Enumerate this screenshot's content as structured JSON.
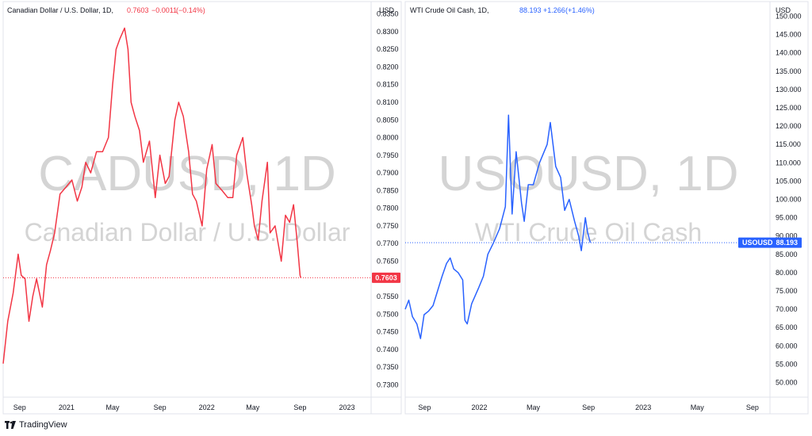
{
  "footer": {
    "brand": "TradingView",
    "logo_icon": "tradingview-logo-icon"
  },
  "chart_data": [
    {
      "type": "line",
      "title": "Canadian Dollar / U.S. Dollar, 1D,",
      "last_value": "0.7603",
      "change": "−0.0011",
      "change_pct": "(−0.14%)",
      "watermark_symbol": "CADUSD, 1D",
      "watermark_name": "Canadian Dollar / U.S. Dollar",
      "currency": "USD",
      "price_label": "0.7603",
      "color": "#f23645",
      "ylim": [
        0.7265,
        0.8385
      ],
      "yticks": [
        "0.8350",
        "0.8300",
        "0.8250",
        "0.8200",
        "0.8150",
        "0.8100",
        "0.8050",
        "0.8000",
        "0.7950",
        "0.7900",
        "0.7850",
        "0.7800",
        "0.7750",
        "0.7700",
        "0.7650",
        "0.7600",
        "0.7550",
        "0.7500",
        "0.7450",
        "0.7400",
        "0.7350",
        "0.7300"
      ],
      "xlim": [
        "2020-07-20",
        "2023-03-05"
      ],
      "xticks": [
        {
          "date": "2020-09-01",
          "label": "Sep"
        },
        {
          "date": "2021-01-01",
          "label": "2021"
        },
        {
          "date": "2021-05-01",
          "label": "May"
        },
        {
          "date": "2021-09-01",
          "label": "Sep"
        },
        {
          "date": "2022-01-01",
          "label": "2022"
        },
        {
          "date": "2022-05-01",
          "label": "May"
        },
        {
          "date": "2022-09-01",
          "label": "Sep"
        },
        {
          "date": "2023-01-01",
          "label": "2023"
        }
      ],
      "series": [
        {
          "values": [
            [
              "2020-07-20",
              0.736
            ],
            [
              "2020-08-01",
              0.748
            ],
            [
              "2020-08-15",
              0.756
            ],
            [
              "2020-08-28",
              0.767
            ],
            [
              "2020-09-05",
              0.761
            ],
            [
              "2020-09-15",
              0.76
            ],
            [
              "2020-09-25",
              0.748
            ],
            [
              "2020-10-05",
              0.755
            ],
            [
              "2020-10-15",
              0.76
            ],
            [
              "2020-10-30",
              0.752
            ],
            [
              "2020-11-10",
              0.764
            ],
            [
              "2020-11-20",
              0.768
            ],
            [
              "2020-12-01",
              0.773
            ],
            [
              "2020-12-15",
              0.784
            ],
            [
              "2020-12-31",
              0.786
            ],
            [
              "2021-01-15",
              0.788
            ],
            [
              "2021-01-29",
              0.782
            ],
            [
              "2021-02-10",
              0.786
            ],
            [
              "2021-02-20",
              0.793
            ],
            [
              "2021-03-05",
              0.79
            ],
            [
              "2021-03-20",
              0.796
            ],
            [
              "2021-04-05",
              0.796
            ],
            [
              "2021-04-20",
              0.8
            ],
            [
              "2021-05-01",
              0.815
            ],
            [
              "2021-05-10",
              0.825
            ],
            [
              "2021-05-20",
              0.828
            ],
            [
              "2021-06-01",
              0.831
            ],
            [
              "2021-06-10",
              0.825
            ],
            [
              "2021-06-18",
              0.81
            ],
            [
              "2021-06-28",
              0.806
            ],
            [
              "2021-07-10",
              0.802
            ],
            [
              "2021-07-20",
              0.793
            ],
            [
              "2021-08-05",
              0.799
            ],
            [
              "2021-08-20",
              0.783
            ],
            [
              "2021-09-01",
              0.795
            ],
            [
              "2021-09-15",
              0.787
            ],
            [
              "2021-09-25",
              0.789
            ],
            [
              "2021-10-10",
              0.805
            ],
            [
              "2021-10-20",
              0.81
            ],
            [
              "2021-11-01",
              0.806
            ],
            [
              "2021-11-15",
              0.796
            ],
            [
              "2021-11-25",
              0.784
            ],
            [
              "2021-12-05",
              0.782
            ],
            [
              "2021-12-20",
              0.775
            ],
            [
              "2022-01-01",
              0.791
            ],
            [
              "2022-01-15",
              0.798
            ],
            [
              "2022-01-25",
              0.787
            ],
            [
              "2022-02-10",
              0.785
            ],
            [
              "2022-02-25",
              0.783
            ],
            [
              "2022-03-10",
              0.783
            ],
            [
              "2022-03-20",
              0.795
            ],
            [
              "2022-04-05",
              0.8
            ],
            [
              "2022-04-15",
              0.79
            ],
            [
              "2022-04-28",
              0.781
            ],
            [
              "2022-05-05",
              0.775
            ],
            [
              "2022-05-15",
              0.771
            ],
            [
              "2022-05-25",
              0.782
            ],
            [
              "2022-06-08",
              0.793
            ],
            [
              "2022-06-15",
              0.773
            ],
            [
              "2022-06-28",
              0.775
            ],
            [
              "2022-07-14",
              0.765
            ],
            [
              "2022-07-25",
              0.778
            ],
            [
              "2022-08-05",
              0.776
            ],
            [
              "2022-08-15",
              0.781
            ],
            [
              "2022-08-25",
              0.77
            ],
            [
              "2022-09-01",
              0.761
            ],
            [
              "2022-09-03",
              0.7603
            ]
          ]
        }
      ]
    },
    {
      "type": "line",
      "title": "WTI Crude Oil Cash, 1D,",
      "last_value": "88.193",
      "change": "+1.266",
      "change_pct": "(+1.46%)",
      "watermark_symbol": "USOUSD, 1D",
      "watermark_name": "WTI Crude Oil Cash",
      "currency": "USD",
      "price_label_symbol": "USOUSD",
      "price_label": "88.193",
      "color": "#2962ff",
      "ylim": [
        46.0,
        154.0
      ],
      "yticks": [
        "150.000",
        "145.000",
        "140.000",
        "135.000",
        "130.000",
        "125.000",
        "120.000",
        "115.000",
        "110.000",
        "105.000",
        "100.000",
        "95.000",
        "90.000",
        "85.000",
        "80.000",
        "75.000",
        "70.000",
        "65.000",
        "60.000",
        "55.000",
        "50.000"
      ],
      "xlim": [
        "2021-07-20",
        "2023-10-10"
      ],
      "xticks": [
        {
          "date": "2021-09-01",
          "label": "Sep"
        },
        {
          "date": "2022-01-01",
          "label": "2022"
        },
        {
          "date": "2022-05-01",
          "label": "May"
        },
        {
          "date": "2022-09-01",
          "label": "Sep"
        },
        {
          "date": "2023-01-01",
          "label": "2023"
        },
        {
          "date": "2023-05-01",
          "label": "May"
        },
        {
          "date": "2023-09-01",
          "label": "Sep"
        }
      ],
      "series": [
        {
          "values": [
            [
              "2021-07-20",
              70.0
            ],
            [
              "2021-07-28",
              72.5
            ],
            [
              "2021-08-05",
              68.0
            ],
            [
              "2021-08-15",
              66.0
            ],
            [
              "2021-08-23",
              62.0
            ],
            [
              "2021-08-31",
              68.5
            ],
            [
              "2021-09-10",
              69.5
            ],
            [
              "2021-09-20",
              71.0
            ],
            [
              "2021-09-30",
              75.0
            ],
            [
              "2021-10-10",
              79.0
            ],
            [
              "2021-10-20",
              82.5
            ],
            [
              "2021-10-28",
              84.0
            ],
            [
              "2021-11-05",
              81.0
            ],
            [
              "2021-11-15",
              80.0
            ],
            [
              "2021-11-25",
              78.0
            ],
            [
              "2021-11-30",
              67.0
            ],
            [
              "2021-12-05",
              66.0
            ],
            [
              "2021-12-15",
              71.5
            ],
            [
              "2021-12-31",
              76.0
            ],
            [
              "2022-01-10",
              79.0
            ],
            [
              "2022-01-20",
              85.0
            ],
            [
              "2022-02-01",
              88.0
            ],
            [
              "2022-02-15",
              92.0
            ],
            [
              "2022-02-28",
              98.0
            ],
            [
              "2022-03-07",
              123.0
            ],
            [
              "2022-03-15",
              96.0
            ],
            [
              "2022-03-24",
              113.0
            ],
            [
              "2022-04-05",
              99.0
            ],
            [
              "2022-04-11",
              94.0
            ],
            [
              "2022-04-20",
              104.0
            ],
            [
              "2022-05-01",
              104.0
            ],
            [
              "2022-05-15",
              110.0
            ],
            [
              "2022-06-01",
              115.0
            ],
            [
              "2022-06-08",
              121.0
            ],
            [
              "2022-06-20",
              109.0
            ],
            [
              "2022-07-01",
              106.0
            ],
            [
              "2022-07-10",
              97.0
            ],
            [
              "2022-07-20",
              100.0
            ],
            [
              "2022-08-01",
              94.0
            ],
            [
              "2022-08-10",
              90.0
            ],
            [
              "2022-08-16",
              86.0
            ],
            [
              "2022-08-25",
              95.0
            ],
            [
              "2022-08-30",
              91.0
            ],
            [
              "2022-09-05",
              88.193
            ]
          ]
        }
      ]
    }
  ]
}
